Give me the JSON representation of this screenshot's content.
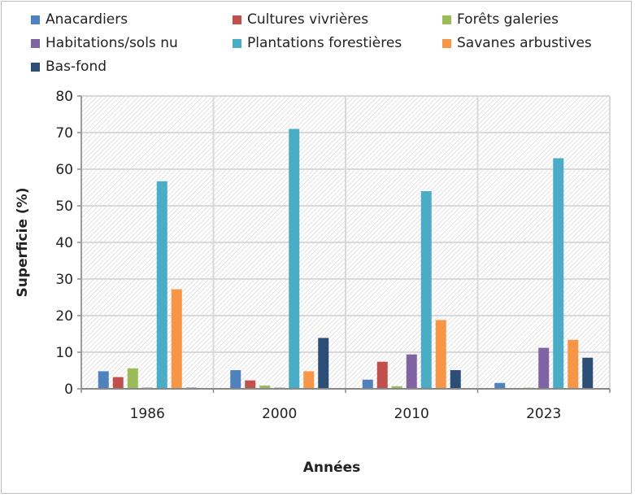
{
  "chart_data": {
    "type": "bar",
    "title": "",
    "xlabel": "Années",
    "ylabel": "Superficie (%)",
    "ylim": [
      0,
      80
    ],
    "yticks": [
      0,
      10,
      20,
      30,
      40,
      50,
      60,
      70,
      80
    ],
    "grid": true,
    "legend_placement": "top",
    "categories": [
      "1986",
      "2000",
      "2010",
      "2023"
    ],
    "series": [
      {
        "name": "Anacardiers",
        "color": "#4f81bd",
        "values": [
          4.8,
          5.1,
          2.5,
          1.6
        ]
      },
      {
        "name": "Cultures vivrières",
        "color": "#c0504d",
        "values": [
          3.2,
          2.3,
          7.4,
          0
        ]
      },
      {
        "name": "Forêts galeries",
        "color": "#9bbb59",
        "values": [
          5.6,
          0.9,
          0.7,
          0.3
        ]
      },
      {
        "name": "Habitations/sols nu",
        "color": "#8064a2",
        "values": [
          0.3,
          0.3,
          9.4,
          11.2
        ]
      },
      {
        "name": "Plantations forestières",
        "color": "#4bacc6",
        "values": [
          56.7,
          71.0,
          54.0,
          63.0
        ]
      },
      {
        "name": "Savanes arbustives",
        "color": "#f79646",
        "values": [
          27.2,
          4.8,
          18.8,
          13.4
        ]
      },
      {
        "name": "Bas-fond",
        "color": "#2c4d75",
        "values": [
          0.3,
          13.9,
          5.1,
          8.5
        ]
      }
    ]
  }
}
